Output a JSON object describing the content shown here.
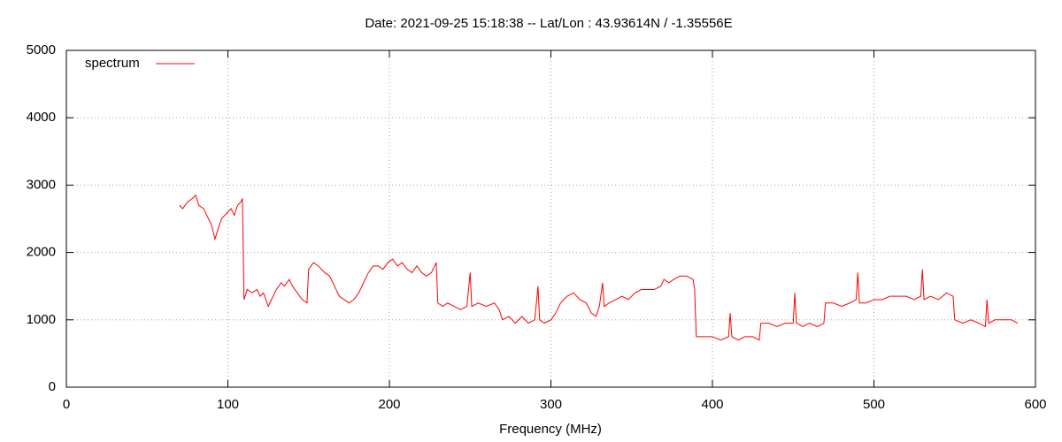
{
  "chart_data": {
    "type": "line",
    "title": "Date: 2021-09-25 15:18:38  --  Lat/Lon : 43.93614N / -1.35556E",
    "x_label": "Frequency (MHz)",
    "xlim": [
      0,
      600
    ],
    "xticks": [
      0,
      100,
      200,
      300,
      400,
      500,
      600
    ],
    "ylim": [
      0,
      5000
    ],
    "yticks": [
      0,
      1000,
      2000,
      3000,
      4000,
      5000
    ],
    "grid": true,
    "legend": "top-left",
    "series": [
      {
        "name": "spectrum",
        "color": "#ff0000",
        "x": [
          70,
          72,
          75,
          78,
          80,
          82,
          85,
          88,
          90,
          92,
          94,
          96,
          98,
          100,
          102,
          104,
          106,
          108,
          109,
          110,
          112,
          115,
          118,
          120,
          122,
          125,
          128,
          130,
          133,
          135,
          138,
          140,
          143,
          146,
          149,
          150,
          153,
          156,
          160,
          163,
          166,
          169,
          172,
          175,
          178,
          181,
          184,
          187,
          190,
          193,
          196,
          199,
          202,
          205,
          208,
          211,
          214,
          217,
          220,
          223,
          226,
          229,
          230,
          233,
          236,
          240,
          244,
          248,
          250,
          251,
          255,
          260,
          265,
          268,
          270,
          274,
          278,
          282,
          286,
          290,
          292,
          293,
          296,
          300,
          303,
          306,
          310,
          314,
          318,
          322,
          325,
          328,
          330,
          332,
          333,
          336,
          340,
          344,
          348,
          352,
          356,
          360,
          364,
          368,
          370,
          373,
          376,
          380,
          384,
          388,
          389,
          390,
          395,
          400,
          405,
          410,
          411,
          412,
          416,
          420,
          425,
          429,
          430,
          435,
          440,
          445,
          450,
          451,
          452,
          456,
          460,
          465,
          469,
          470,
          475,
          480,
          485,
          489,
          490,
          491,
          495,
          500,
          505,
          510,
          515,
          520,
          525,
          529,
          530,
          531,
          535,
          540,
          545,
          549,
          550,
          555,
          560,
          565,
          569,
          570,
          571,
          575,
          580,
          585,
          589
        ],
        "values": [
          2700,
          2650,
          2750,
          2800,
          2850,
          2700,
          2650,
          2500,
          2400,
          2200,
          2350,
          2500,
          2550,
          2600,
          2650,
          2550,
          2700,
          2750,
          2800,
          1300,
          1450,
          1400,
          1450,
          1350,
          1400,
          1200,
          1350,
          1450,
          1550,
          1500,
          1600,
          1500,
          1400,
          1300,
          1250,
          1750,
          1850,
          1800,
          1700,
          1650,
          1500,
          1350,
          1300,
          1250,
          1300,
          1400,
          1550,
          1700,
          1800,
          1800,
          1750,
          1850,
          1900,
          1800,
          1850,
          1750,
          1700,
          1800,
          1700,
          1650,
          1700,
          1850,
          1250,
          1200,
          1250,
          1200,
          1150,
          1200,
          1700,
          1200,
          1250,
          1200,
          1250,
          1150,
          1000,
          1050,
          950,
          1050,
          950,
          1000,
          1500,
          1000,
          950,
          1000,
          1100,
          1250,
          1350,
          1400,
          1300,
          1250,
          1100,
          1050,
          1200,
          1550,
          1200,
          1250,
          1300,
          1350,
          1300,
          1400,
          1450,
          1450,
          1450,
          1500,
          1600,
          1550,
          1600,
          1650,
          1650,
          1600,
          1450,
          750,
          750,
          750,
          700,
          750,
          1100,
          750,
          700,
          750,
          750,
          700,
          950,
          950,
          900,
          950,
          950,
          1400,
          950,
          900,
          950,
          900,
          950,
          1250,
          1250,
          1200,
          1250,
          1300,
          1700,
          1250,
          1250,
          1300,
          1300,
          1350,
          1350,
          1350,
          1300,
          1350,
          1750,
          1300,
          1350,
          1300,
          1400,
          1350,
          1000,
          950,
          1000,
          950,
          900,
          1300,
          950,
          1000,
          1000,
          1000,
          950
        ]
      }
    ]
  }
}
